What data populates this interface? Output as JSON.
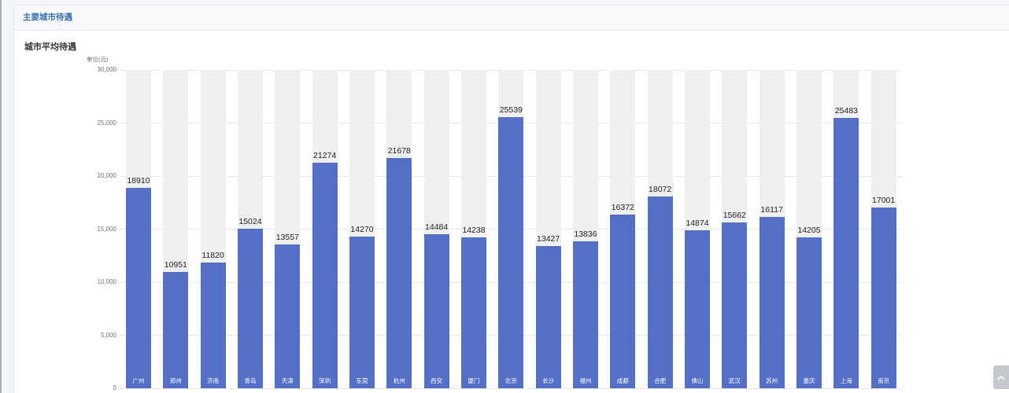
{
  "panel": {
    "title": "主要城市待遇"
  },
  "colors": {
    "accent": "#3b6fb3",
    "bar": "#5470c6",
    "bar_background": "#efefef",
    "value_label": "#1f1f1f",
    "category_label": "#ffffff",
    "axis_label": "#6e7079",
    "gridline": "#e6e9ef"
  },
  "icons": {
    "back_to_top": "chevron-up-icon"
  },
  "chart_data": {
    "type": "bar",
    "title": "城市平均待遇",
    "xlabel": "",
    "ylabel": "单位(元)",
    "ylim": [
      0,
      30000
    ],
    "yticks": [
      "0",
      "5,000",
      "10,000",
      "15,000",
      "20,000",
      "25,000",
      "30,000"
    ],
    "grid": true,
    "categories": [
      "广州",
      "郑州",
      "济南",
      "青岛",
      "天津",
      "深圳",
      "东莞",
      "杭州",
      "西安",
      "厦门",
      "北京",
      "长沙",
      "福州",
      "成都",
      "合肥",
      "佛山",
      "武汉",
      "苏州",
      "重庆",
      "上海",
      "南京"
    ],
    "values": [
      18910,
      10951,
      11820,
      15024,
      13557,
      21274,
      14270,
      21678,
      14484,
      14238,
      25539,
      13427,
      13836,
      16372,
      18072,
      14874,
      15662,
      16117,
      14205,
      25483,
      17001
    ]
  }
}
